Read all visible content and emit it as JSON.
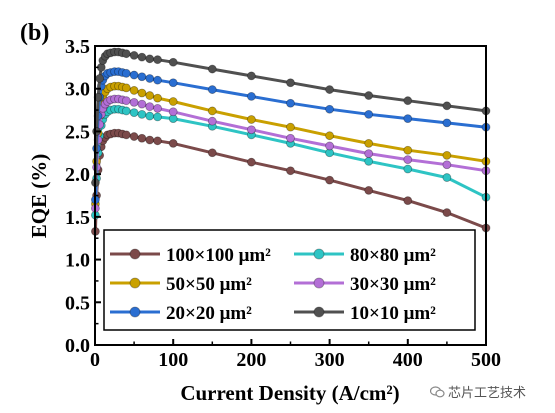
{
  "panel_label": "(b)",
  "watermark_text": "芯片工艺技术",
  "chart_data": {
    "type": "line",
    "xlabel": "Current Density (A/cm²)",
    "ylabel": "EQE (%)",
    "xlim": [
      0,
      500
    ],
    "ylim": [
      0.0,
      3.5
    ],
    "xticks": [
      0,
      100,
      200,
      300,
      400,
      500
    ],
    "yticks": [
      0.0,
      0.5,
      1.0,
      1.5,
      2.0,
      2.5,
      3.0,
      3.5
    ],
    "ytick_labels": [
      "0.0",
      "0.5",
      "1.0",
      "1.5",
      "2.0",
      "2.5",
      "3.0",
      "3.5"
    ],
    "grid": false,
    "legend_position": "bottom",
    "series": [
      {
        "name": "100×100 μm²",
        "color": "#7b4a4a",
        "points": [
          [
            0.5,
            1.33
          ],
          [
            2,
            1.75
          ],
          [
            4,
            2.05
          ],
          [
            6,
            2.22
          ],
          [
            8,
            2.32
          ],
          [
            10,
            2.39
          ],
          [
            13,
            2.43
          ],
          [
            16,
            2.46
          ],
          [
            20,
            2.47
          ],
          [
            25,
            2.48
          ],
          [
            30,
            2.48
          ],
          [
            35,
            2.47
          ],
          [
            40,
            2.46
          ],
          [
            50,
            2.44
          ],
          [
            60,
            2.42
          ],
          [
            70,
            2.4
          ],
          [
            80,
            2.39
          ],
          [
            100,
            2.36
          ],
          [
            150,
            2.25
          ],
          [
            200,
            2.14
          ],
          [
            250,
            2.04
          ],
          [
            300,
            1.93
          ],
          [
            350,
            1.81
          ],
          [
            400,
            1.69
          ],
          [
            450,
            1.55
          ],
          [
            500,
            1.37
          ]
        ]
      },
      {
        "name": "80×80 μm²",
        "color": "#2ec4c4",
        "points": [
          [
            0.5,
            1.52
          ],
          [
            2,
            1.95
          ],
          [
            4,
            2.25
          ],
          [
            6,
            2.45
          ],
          [
            8,
            2.57
          ],
          [
            10,
            2.64
          ],
          [
            13,
            2.7
          ],
          [
            16,
            2.73
          ],
          [
            20,
            2.75
          ],
          [
            25,
            2.76
          ],
          [
            30,
            2.76
          ],
          [
            35,
            2.75
          ],
          [
            40,
            2.74
          ],
          [
            50,
            2.72
          ],
          [
            60,
            2.7
          ],
          [
            70,
            2.68
          ],
          [
            80,
            2.67
          ],
          [
            100,
            2.65
          ],
          [
            150,
            2.56
          ],
          [
            200,
            2.46
          ],
          [
            250,
            2.36
          ],
          [
            300,
            2.25
          ],
          [
            350,
            2.15
          ],
          [
            400,
            2.06
          ],
          [
            450,
            1.96
          ],
          [
            500,
            1.73
          ]
        ]
      },
      {
        "name": "50×50 μm²",
        "color": "#c9a000",
        "points": [
          [
            0.5,
            1.65
          ],
          [
            2,
            2.15
          ],
          [
            4,
            2.48
          ],
          [
            6,
            2.68
          ],
          [
            8,
            2.82
          ],
          [
            10,
            2.9
          ],
          [
            13,
            2.96
          ],
          [
            16,
            3.0
          ],
          [
            20,
            3.02
          ],
          [
            25,
            3.03
          ],
          [
            30,
            3.03
          ],
          [
            35,
            3.02
          ],
          [
            40,
            3.01
          ],
          [
            50,
            2.98
          ],
          [
            60,
            2.95
          ],
          [
            70,
            2.92
          ],
          [
            80,
            2.89
          ],
          [
            100,
            2.85
          ],
          [
            150,
            2.74
          ],
          [
            200,
            2.64
          ],
          [
            250,
            2.55
          ],
          [
            300,
            2.45
          ],
          [
            350,
            2.36
          ],
          [
            400,
            2.28
          ],
          [
            450,
            2.22
          ],
          [
            500,
            2.15
          ]
        ]
      },
      {
        "name": "30×30 μm²",
        "color": "#b36fd6",
        "points": [
          [
            0.5,
            1.6
          ],
          [
            2,
            2.08
          ],
          [
            4,
            2.4
          ],
          [
            6,
            2.58
          ],
          [
            8,
            2.7
          ],
          [
            10,
            2.77
          ],
          [
            13,
            2.82
          ],
          [
            16,
            2.85
          ],
          [
            20,
            2.87
          ],
          [
            25,
            2.88
          ],
          [
            30,
            2.88
          ],
          [
            35,
            2.87
          ],
          [
            40,
            2.86
          ],
          [
            50,
            2.84
          ],
          [
            60,
            2.82
          ],
          [
            70,
            2.79
          ],
          [
            80,
            2.77
          ],
          [
            100,
            2.73
          ],
          [
            150,
            2.62
          ],
          [
            200,
            2.52
          ],
          [
            250,
            2.42
          ],
          [
            300,
            2.33
          ],
          [
            350,
            2.24
          ],
          [
            400,
            2.17
          ],
          [
            450,
            2.11
          ],
          [
            500,
            2.04
          ]
        ]
      },
      {
        "name": "20×20 μm²",
        "color": "#2a6ed1",
        "points": [
          [
            0.5,
            1.7
          ],
          [
            2,
            2.3
          ],
          [
            4,
            2.68
          ],
          [
            6,
            2.9
          ],
          [
            8,
            3.03
          ],
          [
            10,
            3.1
          ],
          [
            13,
            3.15
          ],
          [
            16,
            3.18
          ],
          [
            20,
            3.19
          ],
          [
            25,
            3.2
          ],
          [
            30,
            3.2
          ],
          [
            35,
            3.19
          ],
          [
            40,
            3.18
          ],
          [
            50,
            3.16
          ],
          [
            60,
            3.14
          ],
          [
            70,
            3.12
          ],
          [
            80,
            3.1
          ],
          [
            100,
            3.07
          ],
          [
            150,
            2.99
          ],
          [
            200,
            2.91
          ],
          [
            250,
            2.83
          ],
          [
            300,
            2.76
          ],
          [
            350,
            2.7
          ],
          [
            400,
            2.65
          ],
          [
            450,
            2.6
          ],
          [
            500,
            2.55
          ]
        ]
      },
      {
        "name": "10×10 μm²",
        "color": "#505050",
        "points": [
          [
            0.5,
            1.9
          ],
          [
            2,
            2.5
          ],
          [
            4,
            2.9
          ],
          [
            6,
            3.12
          ],
          [
            8,
            3.25
          ],
          [
            10,
            3.33
          ],
          [
            13,
            3.38
          ],
          [
            16,
            3.41
          ],
          [
            20,
            3.42
          ],
          [
            25,
            3.43
          ],
          [
            30,
            3.43
          ],
          [
            35,
            3.42
          ],
          [
            40,
            3.41
          ],
          [
            50,
            3.39
          ],
          [
            60,
            3.37
          ],
          [
            70,
            3.35
          ],
          [
            80,
            3.34
          ],
          [
            100,
            3.31
          ],
          [
            150,
            3.23
          ],
          [
            200,
            3.15
          ],
          [
            250,
            3.07
          ],
          [
            300,
            2.99
          ],
          [
            350,
            2.92
          ],
          [
            400,
            2.86
          ],
          [
            450,
            2.8
          ],
          [
            500,
            2.74
          ]
        ]
      }
    ]
  }
}
